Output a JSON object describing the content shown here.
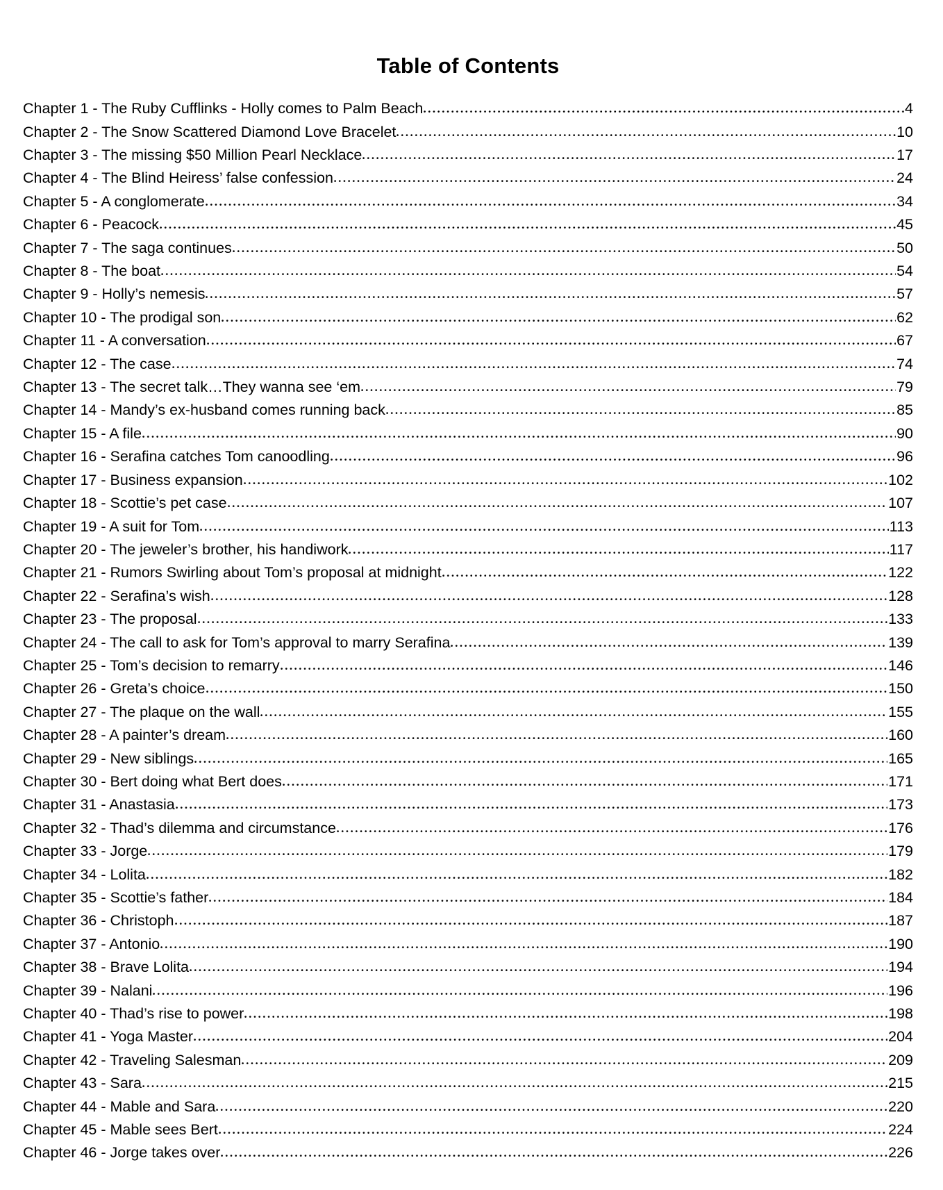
{
  "document": {
    "title": "Table of Contents"
  },
  "toc": {
    "entries": [
      {
        "label": "Chapter 1 - The Ruby Cufflinks - Holly comes to Palm Beach",
        "page": "4"
      },
      {
        "label": "Chapter 2 - The Snow Scattered Diamond Love Bracelet",
        "page": "10"
      },
      {
        "label": "Chapter 3 - The missing $50 Million Pearl Necklace",
        "page": "17"
      },
      {
        "label": "Chapter 4 - The Blind Heiress’ false confession",
        "page": "24"
      },
      {
        "label": "Chapter 5 - A conglomerate",
        "page": "34"
      },
      {
        "label": "Chapter 6 - Peacock",
        "page": "45"
      },
      {
        "label": "Chapter 7 - The saga continues",
        "page": "50"
      },
      {
        "label": "Chapter 8 - The boat",
        "page": "54"
      },
      {
        "label": "Chapter 9 - Holly’s nemesis",
        "page": "57"
      },
      {
        "label": "Chapter 10 - The prodigal son",
        "page": "62"
      },
      {
        "label": "Chapter 11 - A conversation",
        "page": "67"
      },
      {
        "label": "Chapter 12 - The case",
        "page": "74"
      },
      {
        "label": "Chapter 13 - The secret talk…They wanna see ‘em",
        "page": "79"
      },
      {
        "label": "Chapter 14 - Mandy’s ex-husband comes running back",
        "page": "85"
      },
      {
        "label": "Chapter 15 - A file",
        "page": "90"
      },
      {
        "label": "Chapter 16 - Serafina catches Tom canoodling",
        "page": "96"
      },
      {
        "label": "Chapter 17 - Business expansion",
        "page": "102"
      },
      {
        "label": "Chapter 18 - Scottie’s pet case",
        "page": "107"
      },
      {
        "label": "Chapter 19 - A suit for Tom",
        "page": "113"
      },
      {
        "label": "Chapter 20 - The jeweler’s brother, his handiwork",
        "page": "117"
      },
      {
        "label": "Chapter 21 - Rumors Swirling about Tom’s proposal at midnight",
        "page": "122"
      },
      {
        "label": "Chapter 22 - Serafina’s wish",
        "page": "128"
      },
      {
        "label": "Chapter 23 - The proposal",
        "page": "133"
      },
      {
        "label": "Chapter 24 - The call to ask for Tom’s approval to marry Serafina",
        "page": "139"
      },
      {
        "label": "Chapter 25 - Tom’s decision to remarry",
        "page": "146"
      },
      {
        "label": "Chapter 26 - Greta’s choice",
        "page": "150"
      },
      {
        "label": "Chapter 27 - The plaque on the wall",
        "page": "155"
      },
      {
        "label": "Chapter 28 - A painter’s dream",
        "page": "160"
      },
      {
        "label": "Chapter 29 - New siblings",
        "page": "165"
      },
      {
        "label": "Chapter 30 - Bert doing what Bert does",
        "page": "171"
      },
      {
        "label": "Chapter 31 - Anastasia",
        "page": "173"
      },
      {
        "label": "Chapter 32 - Thad’s dilemma and circumstance",
        "page": "176"
      },
      {
        "label": "Chapter 33 - Jorge",
        "page": "179"
      },
      {
        "label": "Chapter 34 - Lolita",
        "page": "182"
      },
      {
        "label": "Chapter 35 - Scottie’s father",
        "page": "184"
      },
      {
        "label": "Chapter 36 - Christoph",
        "page": "187"
      },
      {
        "label": "Chapter 37 - Antonio",
        "page": "190"
      },
      {
        "label": "Chapter 38 - Brave Lolita",
        "page": "194"
      },
      {
        "label": "Chapter 39 - Nalani",
        "page": "196"
      },
      {
        "label": "Chapter 40 - Thad’s rise to power",
        "page": "198"
      },
      {
        "label": "Chapter 41 - Yoga Master",
        "page": "204"
      },
      {
        "label": "Chapter 42 - Traveling Salesman",
        "page": "209"
      },
      {
        "label": "Chapter 43 - Sara",
        "page": "215"
      },
      {
        "label": "Chapter 44 - Mable and Sara",
        "page": "220"
      },
      {
        "label": "Chapter 45 - Mable sees Bert",
        "page": "224"
      },
      {
        "label": "Chapter 46 - Jorge takes over",
        "page": "226"
      }
    ]
  }
}
